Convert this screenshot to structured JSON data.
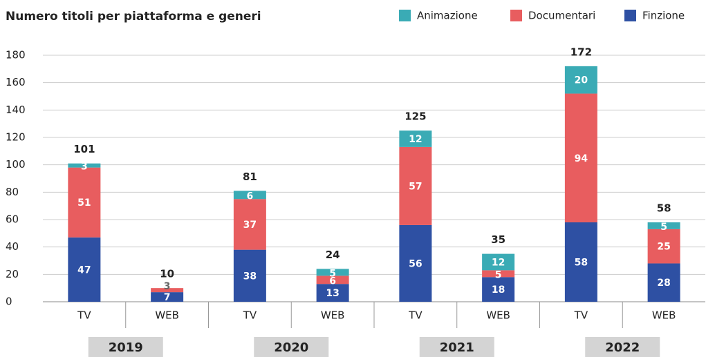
{
  "chart_data": {
    "type": "bar",
    "stacked": true,
    "title": "Numero titoli per piattaforma e generi",
    "categories": [
      "TV",
      "WEB",
      "TV",
      "WEB",
      "TV",
      "WEB",
      "TV",
      "WEB"
    ],
    "groups": [
      "2019",
      "2020",
      "2021",
      "2022"
    ],
    "series": [
      {
        "name": "Finzione",
        "color": "#2e50a3",
        "values": [
          47,
          7,
          38,
          13,
          56,
          18,
          58,
          28
        ]
      },
      {
        "name": "Documentari",
        "color": "#e85d5f",
        "values": [
          51,
          3,
          37,
          6,
          57,
          5,
          94,
          25
        ]
      },
      {
        "name": "Animazione",
        "color": "#3aabb5",
        "values": [
          3,
          null,
          6,
          5,
          12,
          12,
          20,
          5
        ]
      }
    ],
    "totals": [
      101,
      10,
      81,
      24,
      125,
      35,
      172,
      58
    ],
    "ylim": [
      0,
      180
    ],
    "yticks": [
      0,
      20,
      40,
      60,
      80,
      100,
      120,
      140,
      160,
      180
    ],
    "grid": true
  }
}
